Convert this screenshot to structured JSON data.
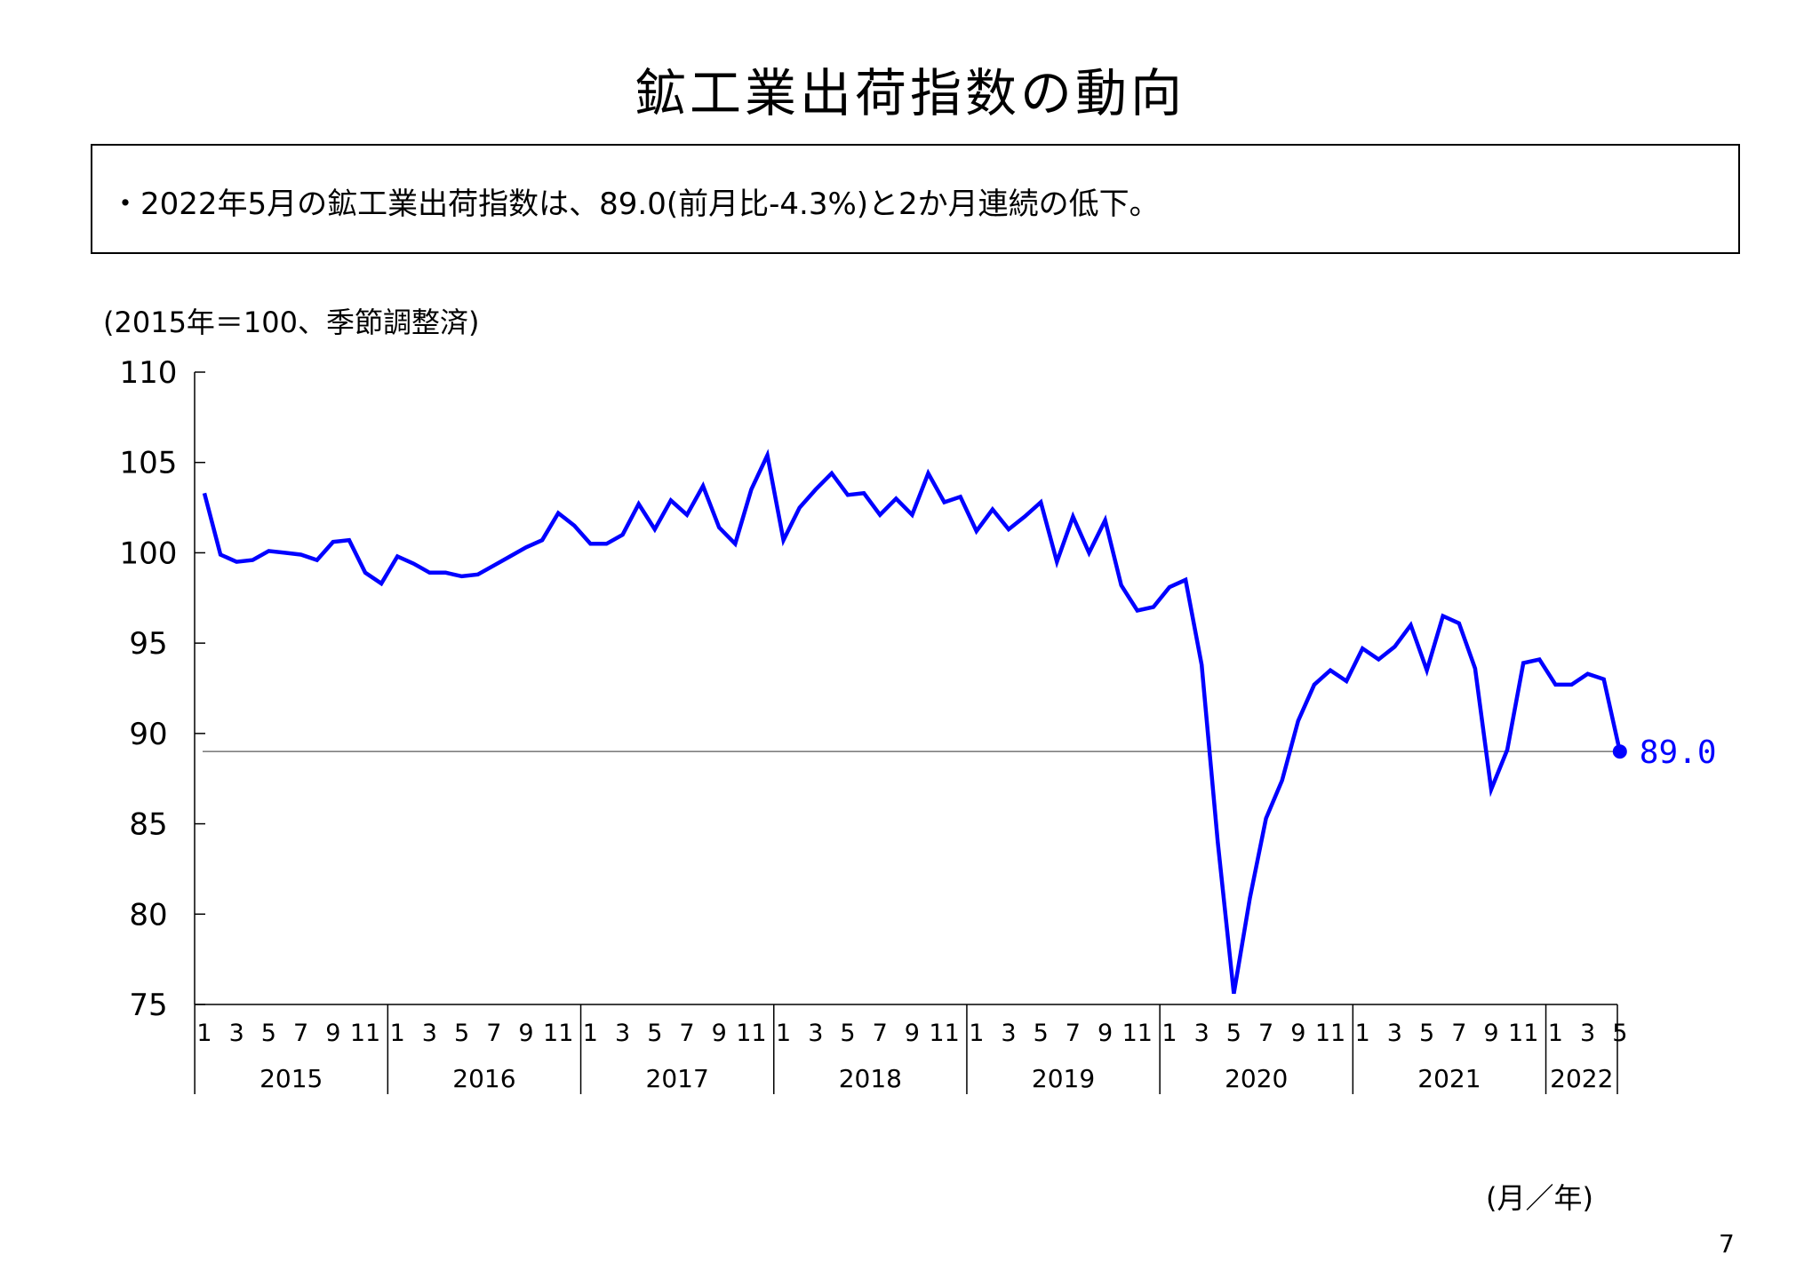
{
  "page": {
    "title": "鉱工業出荷指数の動向",
    "summary": "・2022年5月の鉱工業出荷指数は、89.0(前月比-4.3%)と2か月連続の低下。",
    "unit_note": "(2015年＝100、季節調整済)",
    "x_unit_label": "(月／年)",
    "page_number": "7"
  },
  "chart_data": {
    "type": "line",
    "title": "",
    "xlabel": "(月／年)",
    "ylabel": "(2015年＝100、季節調整済)",
    "ylim": [
      75,
      110
    ],
    "yticks": [
      "110",
      "105",
      "100",
      "95",
      "90",
      "85",
      "80",
      "75"
    ],
    "month_tick_labels": [
      "1",
      "3",
      "5",
      "7",
      "9",
      "11"
    ],
    "years": [
      "2015",
      "2016",
      "2017",
      "2018",
      "2019",
      "2020",
      "2021",
      "2022"
    ],
    "reference_line": 89.0,
    "last_value_label": "89.0",
    "colors": {
      "series": "#0000ff",
      "reference_line": "#808080",
      "axis": "#000000"
    },
    "series": [
      {
        "values": [
          103.3,
          99.9,
          99.5,
          99.6,
          100.1,
          100.0,
          99.9,
          99.6,
          100.6,
          100.7,
          98.9,
          98.3,
          99.8,
          99.4,
          98.9,
          98.9,
          98.7,
          98.8,
          99.3,
          99.8,
          100.3,
          100.7,
          102.2,
          101.5,
          100.5,
          100.5,
          101.0,
          102.7,
          101.3,
          102.9,
          102.1,
          103.7,
          101.4,
          100.5,
          103.5,
          105.4,
          100.7,
          102.5,
          103.5,
          104.4,
          103.2,
          103.3,
          102.1,
          103.0,
          102.1,
          104.4,
          102.8,
          103.1,
          101.2,
          102.4,
          101.3,
          102.0,
          102.8,
          99.5,
          102.0,
          100.0,
          101.8,
          98.2,
          96.8,
          97.0,
          98.1,
          98.5,
          93.8,
          84.0,
          75.6,
          80.9,
          85.3,
          87.4,
          90.7,
          92.7,
          93.5,
          92.9,
          94.7,
          94.1,
          94.8,
          96.0,
          93.5,
          96.5,
          96.1,
          93.6,
          86.9,
          89.1,
          93.9,
          94.1,
          92.7,
          92.7,
          93.3,
          93.0,
          89.0
        ]
      }
    ]
  }
}
